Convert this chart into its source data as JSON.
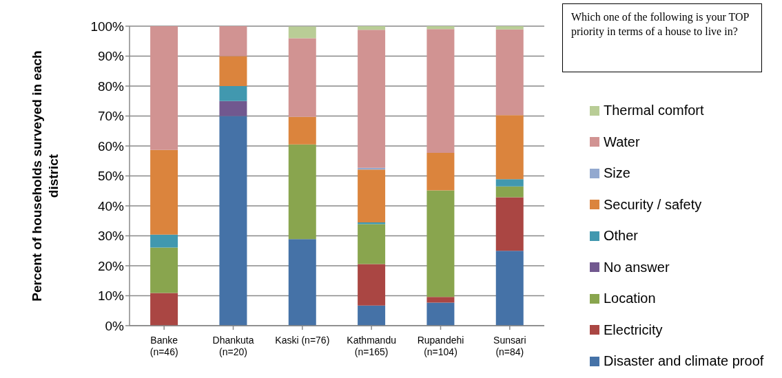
{
  "chart_data": {
    "type": "bar",
    "stacked": true,
    "categories": [
      "Banke\n(n=46)",
      "Dhankuta\n(n=20)",
      "Kaski (n=76)",
      "Kathmandu\n(n=165)",
      "Rupandehi\n(n=104)",
      "Sunsari\n(n=84)"
    ],
    "series": [
      {
        "name": "Disaster and climate proof",
        "color": "#4572a7",
        "values": [
          0,
          70,
          28.9,
          6.7,
          7.7,
          25.0
        ]
      },
      {
        "name": "Electricity",
        "color": "#aa4643",
        "values": [
          10.9,
          0,
          0,
          13.9,
          1.9,
          17.9
        ]
      },
      {
        "name": "Location",
        "color": "#89a54e",
        "values": [
          15.2,
          0,
          31.6,
          13.3,
          35.6,
          3.6
        ]
      },
      {
        "name": "No answer",
        "color": "#71588f",
        "values": [
          0,
          5,
          0,
          0,
          0,
          0
        ]
      },
      {
        "name": "Other",
        "color": "#4198af",
        "values": [
          4.3,
          5,
          0,
          0.6,
          0,
          2.4
        ]
      },
      {
        "name": "Security / safety",
        "color": "#db843d",
        "values": [
          28.3,
          10,
          9.2,
          17.6,
          12.5,
          21.4
        ]
      },
      {
        "name": "Size",
        "color": "#93a9cf",
        "values": [
          0,
          0,
          0,
          0.6,
          0,
          0
        ]
      },
      {
        "name": "Water",
        "color": "#d19392",
        "values": [
          41.3,
          10,
          26.3,
          46.1,
          41.3,
          28.6
        ]
      },
      {
        "name": "Thermal comfort",
        "color": "#b9cd96",
        "values": [
          0,
          0,
          3.9,
          1.2,
          1.0,
          1.2
        ]
      }
    ],
    "ylabel": "Percent of households surveyed in each district",
    "ylim": [
      0,
      100
    ],
    "yticks": [
      {
        "value": 0,
        "label": "0%"
      },
      {
        "value": 10,
        "label": "10%"
      },
      {
        "value": 20,
        "label": "20%"
      },
      {
        "value": 30,
        "label": "30%"
      },
      {
        "value": 40,
        "label": "40%"
      },
      {
        "value": 50,
        "label": "50%"
      },
      {
        "value": 60,
        "label": "60%"
      },
      {
        "value": 70,
        "label": "70%"
      },
      {
        "value": 80,
        "label": "80%"
      },
      {
        "value": 90,
        "label": "90%"
      },
      {
        "value": 100,
        "label": "100%"
      }
    ],
    "grid": "y",
    "legend": "right",
    "annotations": [
      "Which one of the following is your TOP priority in terms of a house to live in?"
    ]
  }
}
